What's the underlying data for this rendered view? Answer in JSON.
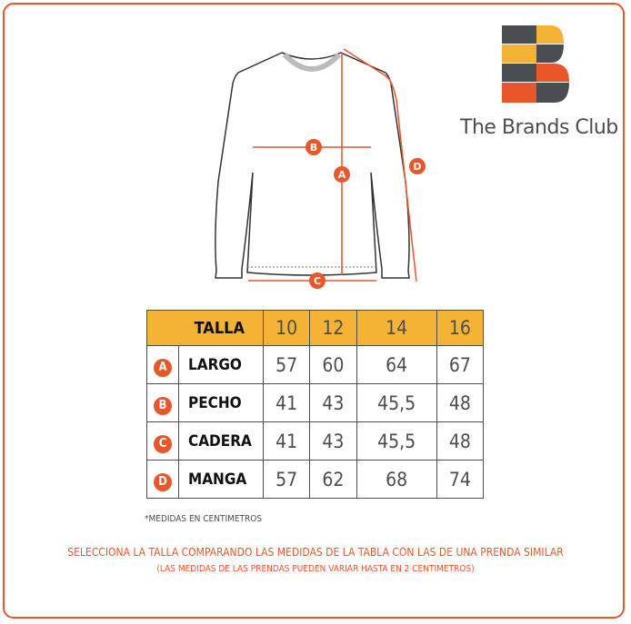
{
  "brand": {
    "name": "The Brands Club",
    "colors": {
      "dark": "#4a4d52",
      "yellow": "#f5b335",
      "orange": "#e8562a"
    }
  },
  "diagram": {
    "labels": [
      "A",
      "B",
      "C",
      "D"
    ]
  },
  "table": {
    "header": {
      "label": "TALLA",
      "sizes": [
        "10",
        "12",
        "14",
        "16"
      ]
    },
    "rows": [
      {
        "letter": "A",
        "name": "LARGO",
        "values": [
          "57",
          "60",
          "64",
          "67"
        ]
      },
      {
        "letter": "B",
        "name": "PECHO",
        "values": [
          "41",
          "43",
          "45,5",
          "48"
        ]
      },
      {
        "letter": "C",
        "name": "CADERA",
        "values": [
          "41",
          "43",
          "45,5",
          "48"
        ]
      },
      {
        "letter": "D",
        "name": "MANGA",
        "values": [
          "57",
          "62",
          "68",
          "74"
        ]
      }
    ]
  },
  "note": "*MEDIDAS EN CENTIMETROS",
  "instruction": "SELECCIONA LA TALLA COMPARANDO LAS MEDIDAS DE LA TABLA CON LAS DE UNA PRENDA SIMILAR",
  "disclaimer": "(LAS MEDIDAS DE LAS PRENDAS PUEDEN VARIAR HASTA EN 2 CENTIMETROS)"
}
